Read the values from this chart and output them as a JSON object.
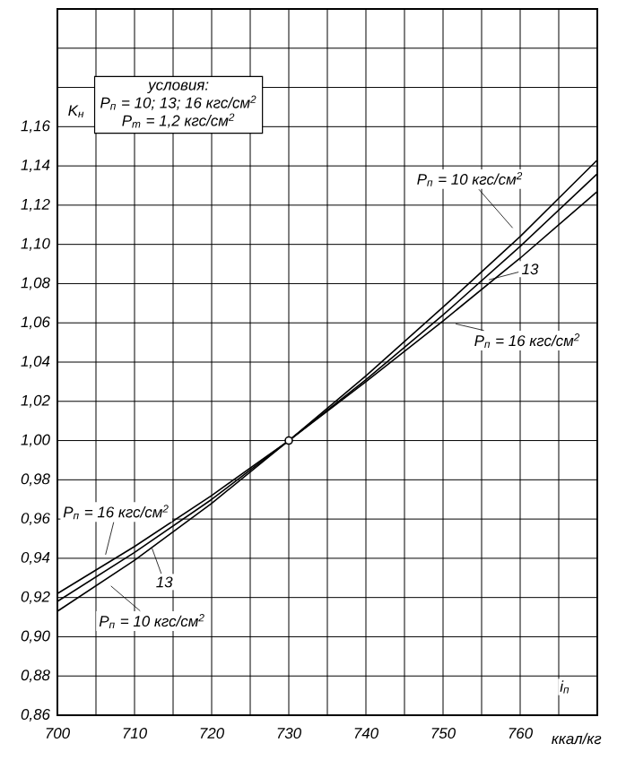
{
  "chart_data": {
    "type": "line",
    "xlabel": "i$_{п}$",
    "ylabel": "K$_{н}$",
    "x": [
      700,
      710,
      720,
      730,
      740,
      750,
      760,
      770
    ],
    "series": [
      {
        "color": "#000000",
        "values": [
          0.913,
          0.939,
          0.968,
          1.0,
          1.033,
          1.068,
          1.104,
          1.143
        ]
      },
      {
        "color": "#000000",
        "values": [
          0.918,
          0.943,
          0.97,
          1.0,
          1.031,
          1.064,
          1.099,
          1.136
        ]
      },
      {
        "color": "#000000",
        "values": [
          0.922,
          0.946,
          0.972,
          1.0,
          1.03,
          1.061,
          1.093,
          1.127
        ]
      },
      {
        "type": "scatter",
        "color": "#000000",
        "x": [
          730
        ],
        "values": [
          1.0
        ],
        "marker": "circle"
      }
    ],
    "marker": "none",
    "line_style": "solid",
    "grid": true,
    "xlim": [
      700,
      770
    ],
    "xticks": [
      700,
      {
        "value": 705,
        "label": null
      },
      710,
      {
        "value": 715,
        "label": null
      },
      720,
      {
        "value": 725,
        "label": null
      },
      730,
      {
        "value": 735,
        "label": null
      },
      740,
      {
        "value": 745,
        "label": null
      },
      750,
      {
        "value": 755,
        "label": null
      },
      760,
      {
        "value": 765,
        "label": null
      }
    ],
    "ylim": [
      0.86,
      1.22
    ],
    "yticks": [
      {
        "value": 0.86,
        "label": "0,86"
      },
      {
        "value": 0.88,
        "label": "0,88"
      },
      {
        "value": 0.9,
        "label": "0,90"
      },
      {
        "value": 0.92,
        "label": "0,92"
      },
      {
        "value": 0.94,
        "label": "0,94"
      },
      {
        "value": 0.96,
        "label": "0,96"
      },
      {
        "value": 0.98,
        "label": "0,98"
      },
      {
        "value": 1.0,
        "label": "1,00"
      },
      {
        "value": 1.02,
        "label": "1,02"
      },
      {
        "value": 1.04,
        "label": "1,04"
      },
      {
        "value": 1.06,
        "label": "1,06"
      },
      {
        "value": 1.08,
        "label": "1,08"
      },
      {
        "value": 1.1,
        "label": "1,10"
      },
      {
        "value": 1.12,
        "label": "1,12"
      },
      {
        "value": 1.14,
        "label": "1,14"
      },
      {
        "value": 1.16,
        "label": "1,16"
      },
      {
        "value": 1.18,
        "label": null
      },
      {
        "value": 1.2,
        "label": null
      }
    ],
    "annotations": [
      "условия:",
      "P$_{п}$ = 10; 13; 16 кгс/см$^{2}$",
      "P$_{т}$ = 1,2 кгс/см$^{2}$",
      "ккал/кг",
      {
        "text": "P$_{п}$ = 10 кгс/см$^{2}$",
        "x": 760,
        "y": 1.104
      },
      {
        "text": "13",
        "x": 755,
        "y": 1.081
      },
      {
        "text": "P$_{п}$ = 16 кгс/см$^{2}$",
        "x": 750,
        "y": 1.061
      },
      {
        "text": "P$_{п}$ = 16 кгс/см$^{2}$",
        "x": 706,
        "y": 0.938
      },
      {
        "text": "13",
        "x": 712,
        "y": 0.948
      },
      {
        "text": "P$_{п}$ = 10 кгс/см$^{2}$",
        "x": 706,
        "y": 0.929
      }
    ]
  }
}
